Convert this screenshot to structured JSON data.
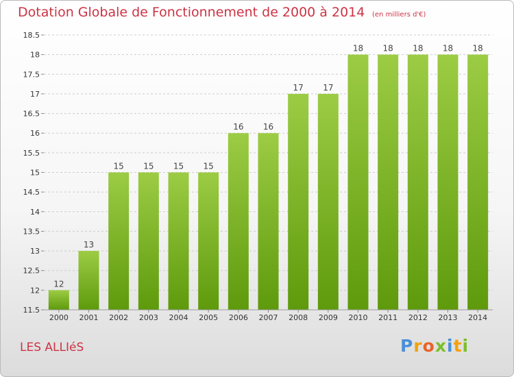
{
  "chart_data": {
    "type": "bar",
    "title": "Dotation Globale de Fonctionnement de 2000 à 2014",
    "unit_label": "(en milliers d'€)",
    "categories": [
      "2000",
      "2001",
      "2002",
      "2003",
      "2004",
      "2005",
      "2006",
      "2007",
      "2008",
      "2009",
      "2010",
      "2011",
      "2012",
      "2013",
      "2014"
    ],
    "values": [
      12,
      13,
      15,
      15,
      15,
      15,
      16,
      16,
      17,
      17,
      18,
      18,
      18,
      18,
      18
    ],
    "value_labels": [
      "12",
      "13",
      "15",
      "15",
      "15",
      "15",
      "16",
      "16",
      "17",
      "17",
      "18",
      "18",
      "18",
      "18",
      "18"
    ],
    "y_ticks": [
      "11.5",
      "12",
      "12.5",
      "13",
      "13.5",
      "14",
      "14.5",
      "15",
      "15.5",
      "16",
      "16.5",
      "17",
      "17.5",
      "18",
      "18.5"
    ],
    "ylim": [
      11.5,
      18.5
    ],
    "xlabel": "",
    "ylabel": "",
    "grid": "horizontal dashed",
    "bar_color_top": "#9ccc44",
    "bar_color_bottom": "#5e9a0c"
  },
  "footer": {
    "place_name": "LES ALLIéS",
    "logo_letters": [
      "P",
      "r",
      "o",
      "x",
      "i",
      "t",
      "i"
    ],
    "logo_colors": [
      "#4a90d9",
      "#f2a20c",
      "#e8632a",
      "#7bbf2a",
      "#4a90d9",
      "#f2a20c",
      "#7bbf2a"
    ]
  },
  "colors": {
    "accent": "#cc3344",
    "grid": "#cccccc",
    "axis_text": "#333333"
  }
}
